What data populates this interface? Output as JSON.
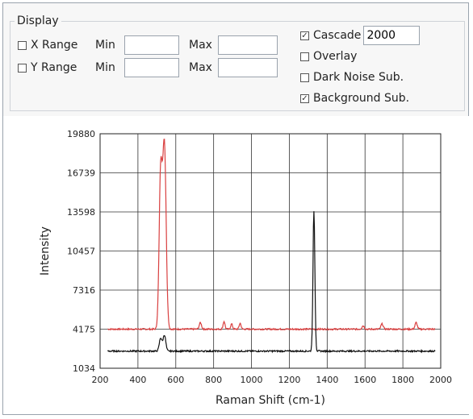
{
  "display": {
    "title": "Display",
    "x_range": {
      "label": "X Range",
      "min_label": "Min",
      "max_label": "Max",
      "min_value": "",
      "max_value": "",
      "checked": false
    },
    "y_range": {
      "label": "Y Range",
      "min_label": "Min",
      "max_label": "Max",
      "min_value": "",
      "max_value": "",
      "checked": false
    },
    "cascade": {
      "label": "Cascade",
      "value": "2000",
      "checked": true
    },
    "overlay": {
      "label": "Overlay",
      "checked": false
    },
    "dark_noise": {
      "label": "Dark Noise Sub.",
      "checked": false
    },
    "background": {
      "label": "Background Sub.",
      "checked": true
    }
  },
  "chart_data": {
    "type": "line",
    "title": "",
    "xlabel": "Raman Shift (cm-1)",
    "ylabel": "Intensity",
    "xlim": [
      200,
      2000
    ],
    "ylim": [
      1034,
      19880
    ],
    "x_ticks": [
      200,
      400,
      600,
      800,
      1000,
      1200,
      1400,
      1600,
      1800,
      2000
    ],
    "y_ticks": [
      1034,
      4175,
      7316,
      10457,
      13598,
      16739,
      19880
    ],
    "grid": true,
    "series": [
      {
        "color": "#d94040",
        "baseline": 4175,
        "peaks": [
          [
            520,
            16500,
            8
          ],
          [
            540,
            18900,
            9
          ],
          [
            730,
            4700,
            6
          ],
          [
            855,
            4800,
            5
          ],
          [
            895,
            4600,
            5
          ],
          [
            940,
            4650,
            5
          ],
          [
            1590,
            4450,
            6
          ],
          [
            1690,
            4600,
            6
          ],
          [
            1870,
            4700,
            6
          ]
        ]
      },
      {
        "color": "#111111",
        "baseline": 2410,
        "peaks": [
          [
            520,
            3450,
            7
          ],
          [
            540,
            3700,
            7
          ],
          [
            1330,
            13700,
            5
          ]
        ]
      }
    ]
  }
}
